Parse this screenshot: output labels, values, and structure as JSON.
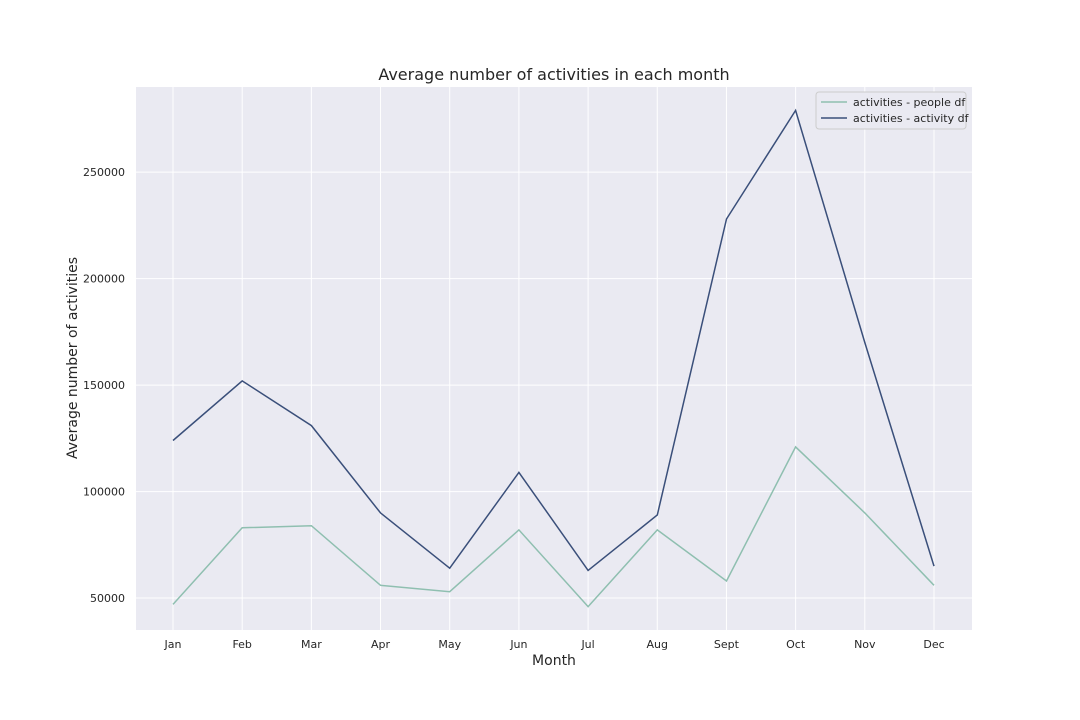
{
  "chart_data": {
    "type": "line",
    "title": "Average number of activities in each month",
    "xlabel": "Month",
    "ylabel": "Average number of activities",
    "categories": [
      "Jan",
      "Feb",
      "Mar",
      "Apr",
      "May",
      "Jun",
      "Jul",
      "Aug",
      "Sept",
      "Oct",
      "Nov",
      "Dec"
    ],
    "series": [
      {
        "name": "activities - people df",
        "color": "#8fbfb0",
        "values": [
          47000,
          83000,
          84000,
          56000,
          53000,
          82000,
          46000,
          82000,
          58000,
          121000,
          90000,
          56000
        ]
      },
      {
        "name": "activities - activity df",
        "color": "#3a4f7a",
        "values": [
          124000,
          152000,
          131000,
          90000,
          64000,
          109000,
          63000,
          89000,
          228000,
          279000,
          170000,
          65000
        ]
      }
    ],
    "ylim": [
      35000,
      290000
    ],
    "yticks": [
      50000,
      100000,
      150000,
      200000,
      250000
    ],
    "grid": true,
    "legend_position": "top-right",
    "background_color": "#eaeaf2"
  }
}
